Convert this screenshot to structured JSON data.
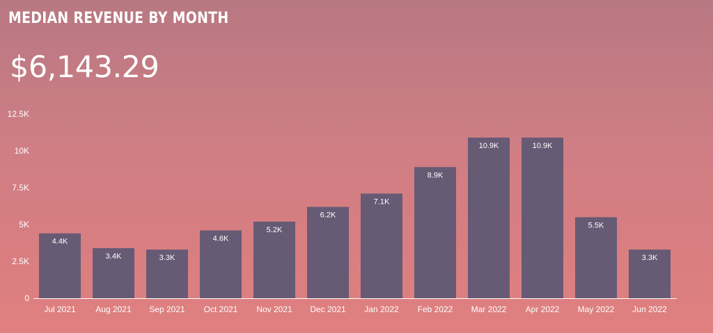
{
  "card": {
    "title": "MEDIAN REVENUE BY MONTH",
    "value": "$6,143.29"
  },
  "colors": {
    "bar": "#675a74",
    "axis": "#ffffff",
    "background_top": "#b87882",
    "background_bottom": "#e07f7f"
  },
  "chart_data": {
    "type": "bar",
    "title": "MEDIAN REVENUE BY MONTH",
    "xlabel": "",
    "ylabel": "",
    "categories": [
      "Jul 2021",
      "Aug 2021",
      "Sep 2021",
      "Oct 2021",
      "Nov 2021",
      "Dec 2021",
      "Jan 2022",
      "Feb 2022",
      "Mar 2022",
      "Apr 2022",
      "May 2022",
      "Jun 2022"
    ],
    "values": [
      4400,
      3400,
      3300,
      4600,
      5200,
      6200,
      7100,
      8900,
      10900,
      10900,
      5500,
      3300
    ],
    "data_labels": [
      "4.4K",
      "3.4K",
      "3.3K",
      "4.6K",
      "5.2K",
      "6.2K",
      "7.1K",
      "8.9K",
      "10.9K",
      "10.9K",
      "5.5K",
      "3.3K"
    ],
    "ylim": [
      0,
      12500
    ],
    "yticks": [
      0,
      2500,
      5000,
      7500,
      10000,
      12500
    ],
    "ytick_labels": [
      "0",
      "2.5K",
      "5K",
      "7.5K",
      "10K",
      "12.5K"
    ],
    "grid": false,
    "legend": "none"
  }
}
